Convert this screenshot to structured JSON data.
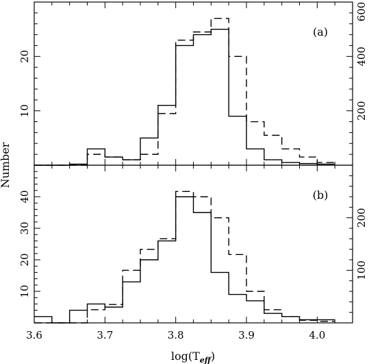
{
  "chart_data": {
    "type": "histogram",
    "xlabel_main": "log(T",
    "xlabel_sub": "eff",
    "xlabel_close": ")",
    "ylabel": "Number",
    "xlim": [
      3.6,
      4.05
    ],
    "bin_edges": [
      3.6,
      3.625,
      3.65,
      3.675,
      3.7,
      3.725,
      3.75,
      3.775,
      3.8,
      3.825,
      3.85,
      3.875,
      3.9,
      3.925,
      3.95,
      3.975,
      4.0,
      4.025
    ],
    "x_ticks": [
      {
        "v": 3.6,
        "label": "3.6"
      },
      {
        "v": 3.7,
        "label": "3.7"
      },
      {
        "v": 3.8,
        "label": "3.8"
      },
      {
        "v": 3.9,
        "label": "3.9"
      },
      {
        "v": 4.0,
        "label": "4.0"
      }
    ],
    "panels": [
      {
        "id": "a",
        "label": "(a)",
        "left_axis": {
          "ylim": [
            0,
            30
          ],
          "tick_labels": [
            {
              "v": 10,
              "label": "10"
            },
            {
              "v": 20,
              "label": "20"
            }
          ]
        },
        "right_axis": {
          "ylim": [
            0,
            600
          ],
          "tick_labels": [
            {
              "v": 200,
              "label": "200"
            },
            {
              "v": 400,
              "label": "400"
            },
            {
              "v": 600,
              "label": "600"
            }
          ]
        },
        "series": [
          {
            "style": "solid",
            "axis": "left",
            "values": [
              0,
              0,
              0.2,
              3,
              1.5,
              1,
              5,
              11,
              22,
              24,
              25,
              9,
              3,
              1,
              0.5,
              0.3,
              0.2
            ]
          },
          {
            "style": "dashed",
            "axis": "right",
            "values": [
              0,
              0,
              0,
              40,
              30,
              20,
              40,
              190,
              460,
              490,
              540,
              400,
              160,
              110,
              60,
              30,
              10
            ]
          }
        ]
      },
      {
        "id": "b",
        "label": "(b)",
        "left_axis": {
          "ylim": [
            0,
            50
          ],
          "tick_labels": [
            {
              "v": 10,
              "label": "10"
            },
            {
              "v": 20,
              "label": "20"
            },
            {
              "v": 30,
              "label": "30"
            },
            {
              "v": 40,
              "label": "40"
            }
          ]
        },
        "right_axis": {
          "ylim": [
            0,
            300
          ],
          "tick_labels": [
            {
              "v": 100,
              "label": "100"
            },
            {
              "v": 200,
              "label": "200"
            }
          ]
        },
        "series": [
          {
            "style": "solid",
            "axis": "left",
            "values": [
              2,
              0,
              4,
              6,
              5,
              13,
              20,
              26,
              40,
              35,
              16,
              9,
              7,
              3,
              2,
              1,
              1
            ]
          },
          {
            "style": "dashed",
            "axis": "right",
            "values": [
              0,
              0,
              0,
              25,
              35,
              100,
              140,
              160,
              250,
              240,
              200,
              130,
              60,
              25,
              12,
              5,
              3
            ]
          }
        ]
      }
    ]
  }
}
